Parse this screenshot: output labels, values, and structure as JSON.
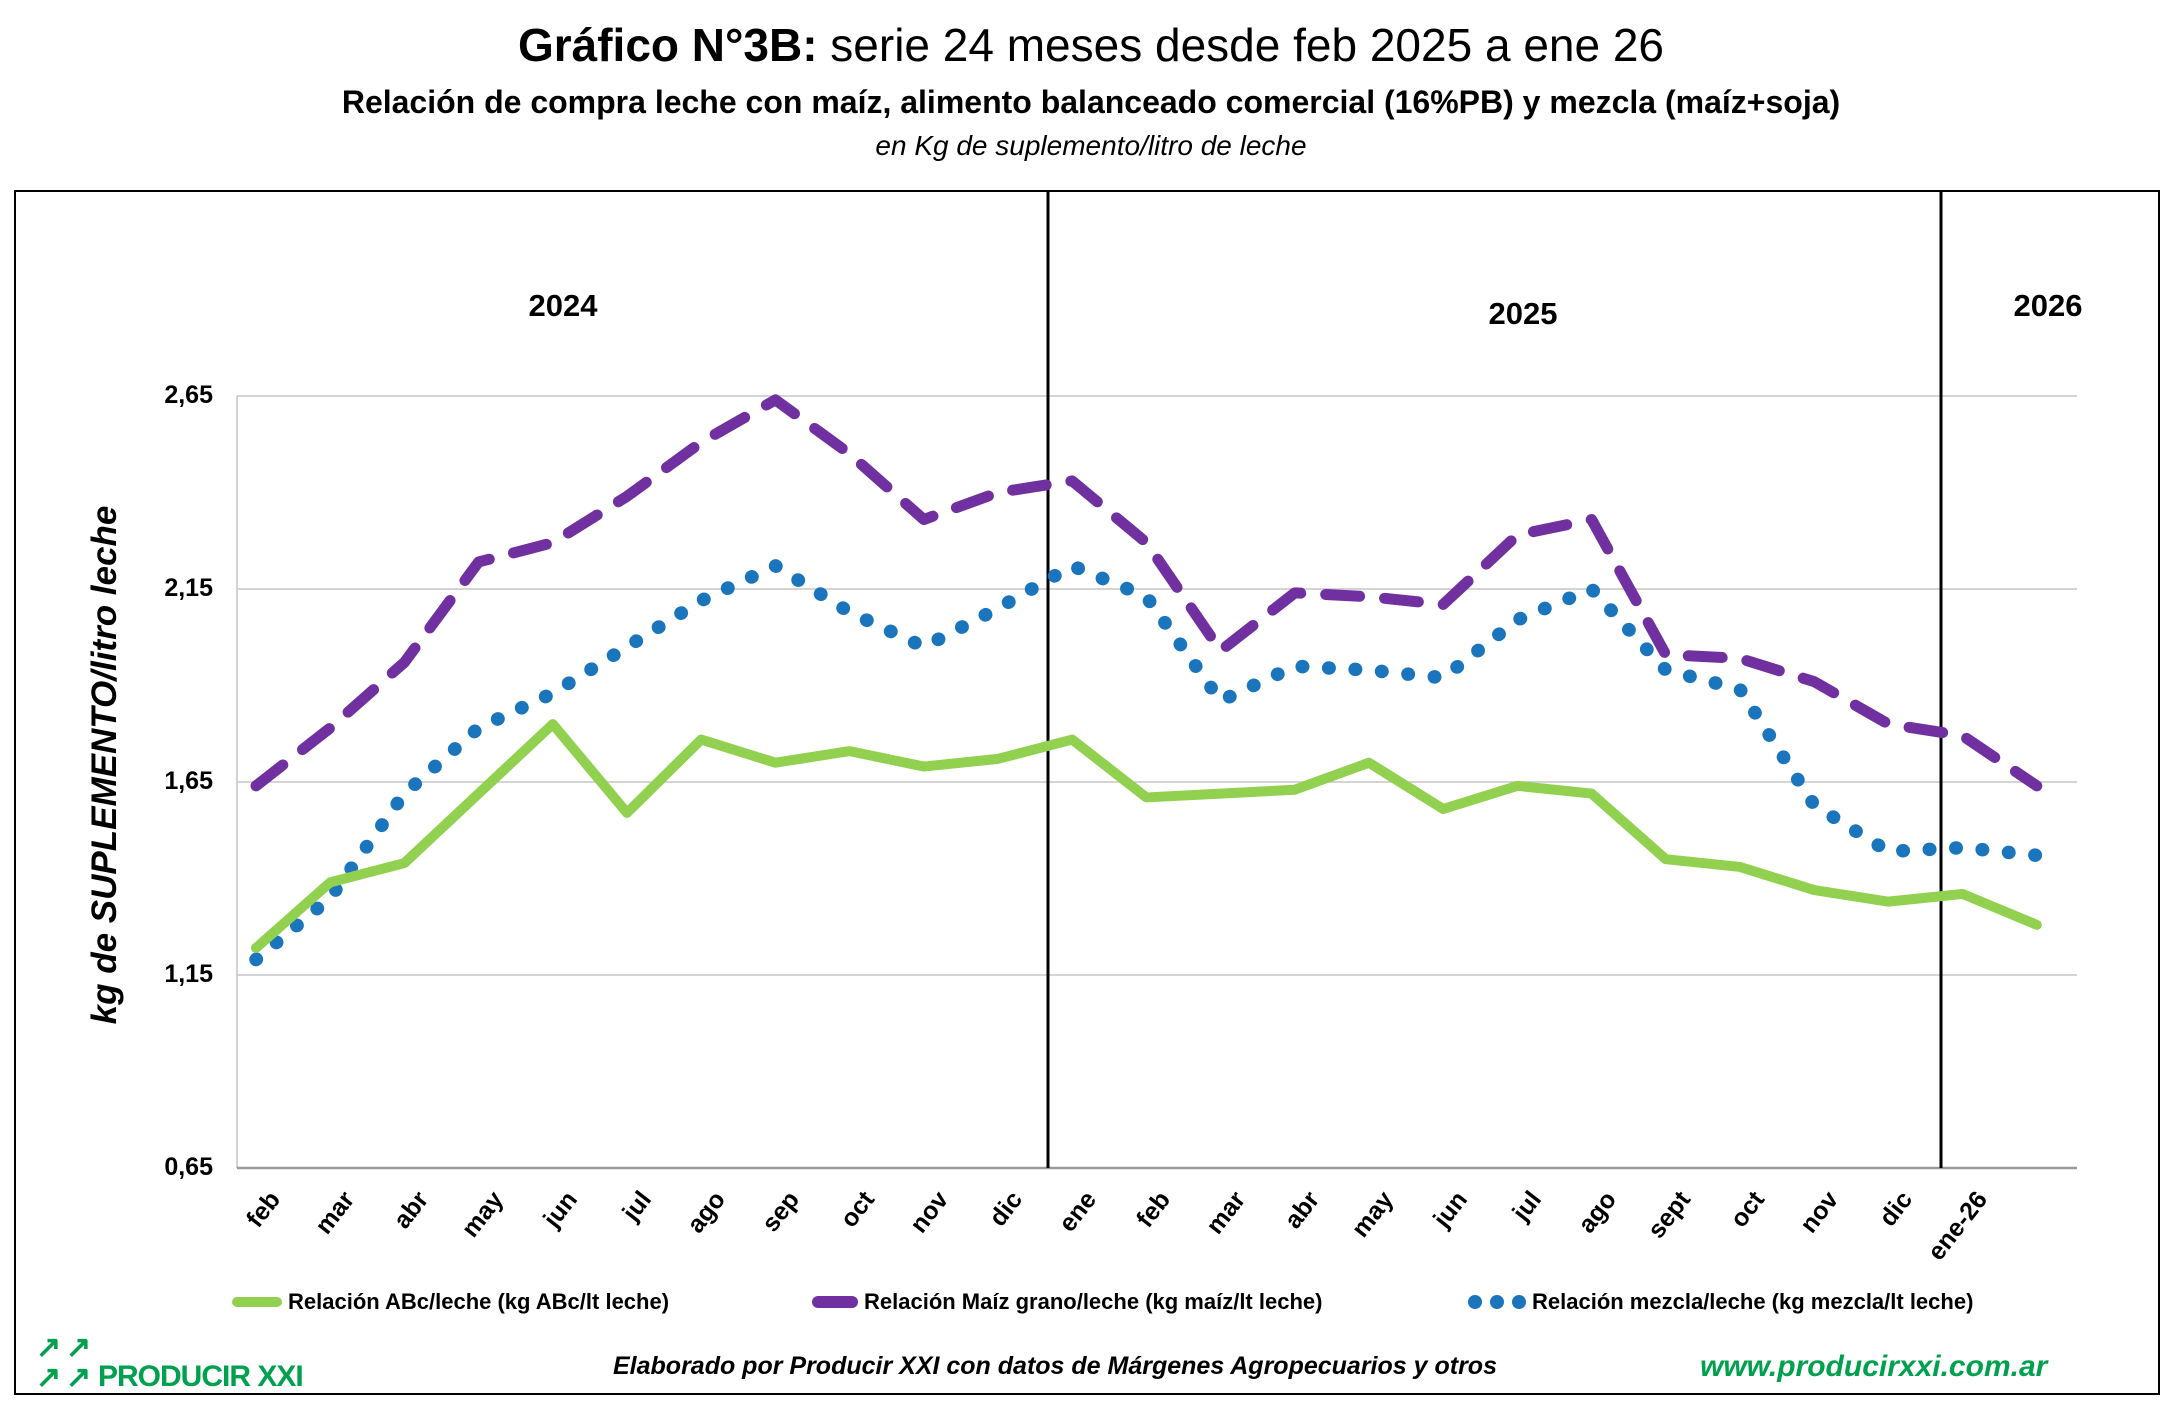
{
  "title": {
    "prefix": "Gráfico N°3B:",
    "rest": " serie 24 meses desde feb 2025 a ene 26"
  },
  "subtitle": "Relación de compra leche con maíz, alimento balanceado comercial (16%PB) y mezcla (maíz+soja)",
  "subtitle2": "en Kg de suplemento/litro de leche",
  "years": [
    "2024",
    "2025",
    "2026"
  ],
  "legend": {
    "items": [
      {
        "label": "Relación ABc/leche (kg ABc/lt leche)",
        "color": "#92d050",
        "style": "solid"
      },
      {
        "label": "Relación Maíz grano/leche (kg maíz/lt leche)",
        "color": "#7030a0",
        "style": "dashed"
      },
      {
        "label": "Relación mezcla/leche (kg mezcla/lt leche)",
        "color": "#1b75bc",
        "style": "dotted"
      }
    ]
  },
  "footer": {
    "logo_text": "PRODUCIR XXI",
    "credit": "Elaborado por Producir XXI con datos de Márgenes Agropecuarios y otros",
    "url": "www.producirxxi.com.ar"
  },
  "colors": {
    "abc_green": "#92d050",
    "maiz_purple": "#7030a0",
    "mezcla_blue": "#1b75bc",
    "brand_green": "#00a14e",
    "gridline": "#c6c6c6",
    "axis_line": "#9a9a9a",
    "divider": "#000000"
  },
  "chart_data": {
    "type": "line",
    "title": "Gráfico N°3B: serie 24 meses desde feb 2025 a ene 26",
    "subtitle": "Relación de compra leche con maíz, alimento balanceado comercial (16%PB) y mezcla (maíz+soja), en Kg de suplemento/litro de leche",
    "xlabel": "",
    "ylabel": "kg de SUPLEMENTO/litro leche",
    "ylim": [
      0.65,
      2.65
    ],
    "grid": "horizontal",
    "legend_position": "bottom",
    "year_sections": [
      "2024",
      "2025",
      "2026"
    ],
    "categories": [
      "feb",
      "mar",
      "abr",
      "may",
      "jun",
      "jul",
      "ago",
      "sep",
      "oct",
      "nov",
      "dic",
      "ene",
      "feb",
      "mar",
      "abr",
      "may",
      "jun",
      "jul",
      "ago",
      "sept",
      "oct",
      "nov",
      "dic",
      "ene-26",
      ""
    ],
    "yticks": [
      {
        "label": "2,65",
        "value": 2.65
      },
      {
        "label": "2,15",
        "value": 2.15
      },
      {
        "label": "1,65",
        "value": 1.65
      },
      {
        "label": "1,15",
        "value": 1.15
      },
      {
        "label": "0,65",
        "value": 0.65
      }
    ],
    "series": [
      {
        "name": "Relación Maíz grano/leche (kg maíz/lt leche)",
        "color": "#7030a0",
        "style": "dashed",
        "values": [
          1.64,
          1.79,
          1.96,
          2.22,
          2.27,
          2.39,
          2.53,
          2.64,
          2.5,
          2.33,
          2.4,
          2.43,
          2.27,
          1.99,
          2.14,
          2.13,
          2.11,
          2.29,
          2.33,
          1.98,
          1.97,
          1.91,
          1.8,
          1.77,
          1.64
        ]
      },
      {
        "name": "Relación mezcla/leche (kg mezcla/lt leche)",
        "color": "#1b75bc",
        "style": "dotted",
        "values": [
          1.19,
          1.35,
          1.62,
          1.79,
          1.88,
          2.0,
          2.12,
          2.21,
          2.09,
          2.0,
          2.1,
          2.21,
          2.13,
          1.86,
          1.95,
          1.94,
          1.92,
          2.07,
          2.15,
          1.94,
          1.89,
          1.59,
          1.47,
          1.48,
          1.46
        ]
      },
      {
        "name": "Relación ABc/leche (kg ABc/lt leche)",
        "color": "#92d050",
        "style": "solid",
        "values": [
          1.22,
          1.39,
          1.44,
          1.62,
          1.8,
          1.57,
          1.76,
          1.7,
          1.73,
          1.69,
          1.71,
          1.76,
          1.61,
          1.62,
          1.63,
          1.7,
          1.58,
          1.64,
          1.62,
          1.45,
          1.43,
          1.37,
          1.34,
          1.36,
          1.28
        ]
      }
    ]
  }
}
